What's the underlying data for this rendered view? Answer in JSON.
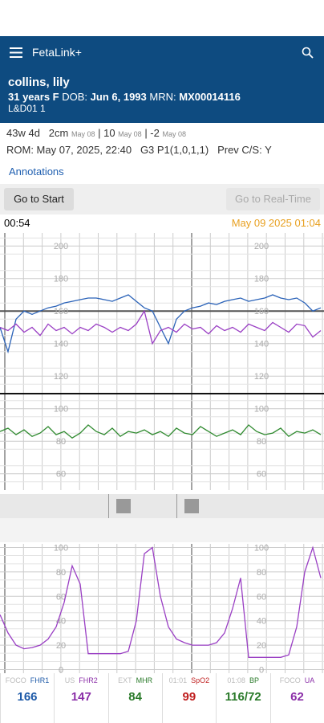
{
  "app_bar": {
    "title": "FetaLink+"
  },
  "patient": {
    "name": "collins, lily",
    "age_sex": "31 years F",
    "dob_label": "DOB:",
    "dob": "Jun 6, 1993",
    "mrn_label": "MRN:",
    "mrn": "MX00014116",
    "bed": "L&D01 1"
  },
  "info": {
    "ga": "43w 4d",
    "dilation": "2cm",
    "dilation_date": "May 08",
    "effacement": "| 10",
    "effacement_date": "May 08",
    "station": "| -2",
    "station_date": "May 08",
    "rom": "ROM: May 07, 2025, 22:40",
    "gp": "G3 P1(1,0,1,1)",
    "prev_cs": "Prev C/S:",
    "prev_cs_value": "Y"
  },
  "annotations_link": "Annotations",
  "buttons": {
    "start": "Go to Start",
    "realtime": "Go to Real-Time"
  },
  "timeline": {
    "start": "00:54",
    "end": "May 09 2025 01:04"
  },
  "fhr_chart": {
    "ylim": [
      50,
      208
    ],
    "yticks": [
      200,
      180,
      160,
      140,
      120,
      100,
      80,
      60
    ],
    "series": [
      {
        "name": "FHR1",
        "color": "#2a62b8",
        "values": [
          150,
          135,
          155,
          160,
          158,
          160,
          162,
          163,
          165,
          166,
          167,
          168,
          168,
          167,
          166,
          168,
          170,
          166,
          162,
          160,
          150,
          140,
          155,
          160,
          162,
          163,
          165,
          164,
          166,
          167,
          168,
          166,
          167,
          168,
          170,
          168,
          167,
          168,
          165,
          160,
          162
        ]
      },
      {
        "name": "FHR2",
        "color": "#9a3fc4",
        "values": [
          150,
          148,
          152,
          147,
          150,
          145,
          152,
          148,
          150,
          146,
          150,
          148,
          152,
          150,
          147,
          150,
          148,
          152,
          160,
          140,
          148,
          150,
          147,
          152,
          149,
          150,
          146,
          151,
          148,
          150,
          147,
          152,
          150,
          148,
          153,
          150,
          147,
          152,
          151,
          144,
          148
        ]
      },
      {
        "name": "MHR",
        "color": "#2f8a2f",
        "values": [
          86,
          88,
          84,
          87,
          83,
          85,
          89,
          84,
          86,
          82,
          85,
          90,
          86,
          84,
          88,
          83,
          86,
          85,
          87,
          84,
          86,
          83,
          88,
          85,
          84,
          89,
          86,
          83,
          85,
          87,
          84,
          90,
          86,
          84,
          85,
          88,
          83,
          86,
          85,
          87,
          84
        ]
      }
    ]
  },
  "ua_chart": {
    "ylim": [
      -3,
      103
    ],
    "yticks": [
      0,
      20,
      40,
      60,
      80,
      100
    ],
    "color": "#9a3fc4",
    "values": [
      45,
      30,
      20,
      17,
      18,
      20,
      25,
      35,
      55,
      85,
      70,
      13,
      13,
      13,
      13,
      13,
      15,
      40,
      95,
      100,
      60,
      35,
      25,
      22,
      20,
      20,
      20,
      22,
      30,
      50,
      75,
      10,
      10,
      10,
      10,
      10,
      12,
      35,
      80,
      100,
      75
    ]
  },
  "vitals": [
    {
      "source": "FOCO",
      "name": "FHR1",
      "value": "166",
      "color": "#1e5aa8"
    },
    {
      "source": "US",
      "name": "FHR2",
      "value": "147",
      "color": "#8b2fa8"
    },
    {
      "source": "EXT",
      "name": "MHR",
      "value": "84",
      "color": "#2a7a2a"
    },
    {
      "source": "01:01",
      "name": "SpO2",
      "value": "99",
      "color": "#c02020"
    },
    {
      "source": "01:08",
      "name": "BP",
      "value": "116/72",
      "color": "#2a7a2a"
    },
    {
      "source": "FOCO",
      "name": "UA",
      "value": "62",
      "color": "#8b2fa8"
    }
  ]
}
